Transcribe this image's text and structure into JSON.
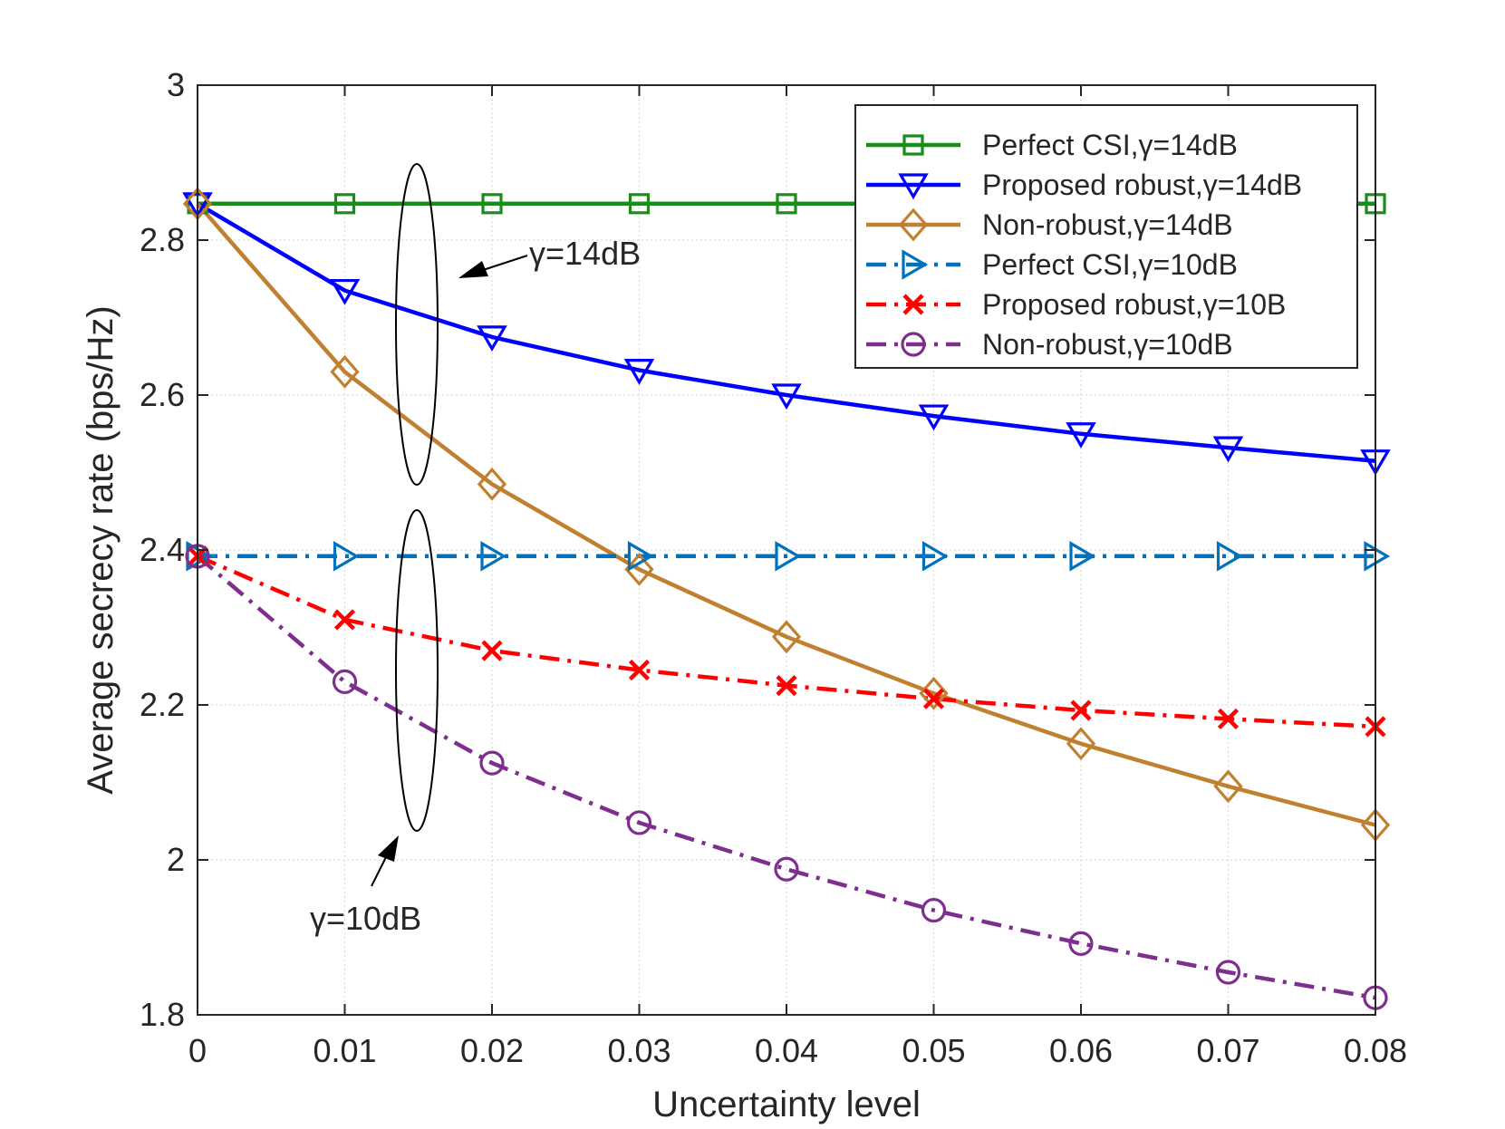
{
  "chart_data": {
    "type": "line",
    "title": "",
    "xlabel": "Uncertainty level",
    "ylabel": "Average secrecy rate (bps/Hz)",
    "xlim": [
      0,
      0.08
    ],
    "ylim": [
      1.8,
      3.0
    ],
    "grid": true,
    "x": [
      0,
      0.01,
      0.02,
      0.03,
      0.04,
      0.05,
      0.06,
      0.07,
      0.08
    ],
    "x_tick_labels": [
      "0",
      "0.01",
      "0.02",
      "0.03",
      "0.04",
      "0.05",
      "0.06",
      "0.07",
      "0.08"
    ],
    "y_ticks": [
      1.8,
      2.0,
      2.2,
      2.4,
      2.6,
      2.8,
      3.0
    ],
    "y_tick_labels": [
      "1.8",
      "2",
      "2.2",
      "2.4",
      "2.6",
      "2.8",
      "3"
    ],
    "legend_position": "top-right",
    "series": [
      {
        "name": "Perfect CSI,γ=14dB",
        "color": "#1a8c1a",
        "dash": "solid",
        "marker": "square",
        "values": [
          2.847,
          2.847,
          2.847,
          2.847,
          2.847,
          2.847,
          2.847,
          2.847,
          2.847
        ]
      },
      {
        "name": "Proposed robust,γ=14dB",
        "color": "#0000ff",
        "dash": "solid",
        "marker": "triangle-down",
        "values": [
          2.847,
          2.735,
          2.675,
          2.632,
          2.6,
          2.573,
          2.55,
          2.532,
          2.515
        ]
      },
      {
        "name": "Non-robust,γ=14dB",
        "color": "#c08030",
        "dash": "solid",
        "marker": "diamond",
        "values": [
          2.847,
          2.63,
          2.485,
          2.375,
          2.288,
          2.215,
          2.15,
          2.095,
          2.045
        ]
      },
      {
        "name": "Perfect CSI,γ=10dB",
        "color": "#0072bd",
        "dash": "dashdot",
        "marker": "triangle-right",
        "values": [
          2.392,
          2.392,
          2.392,
          2.392,
          2.392,
          2.392,
          2.392,
          2.392,
          2.392
        ]
      },
      {
        "name": "Proposed robust,γ=10B",
        "color": "#ff0000",
        "dash": "dashdot",
        "marker": "x",
        "values": [
          2.392,
          2.31,
          2.27,
          2.245,
          2.225,
          2.208,
          2.193,
          2.182,
          2.172
        ]
      },
      {
        "name": "Non-robust,γ=10dB",
        "color": "#7e2f8e",
        "dash": "dashdot",
        "marker": "circle",
        "values": [
          2.392,
          2.23,
          2.125,
          2.048,
          1.988,
          1.935,
          1.892,
          1.855,
          1.822
        ]
      }
    ],
    "annotations": [
      {
        "text": "γ=14dB",
        "points_to": "upper curve group (γ=14dB) at uncertainty 0.015"
      },
      {
        "text": "γ=10dB",
        "points_to": "lower curve group (γ=10dB) at uncertainty 0.015"
      }
    ]
  }
}
